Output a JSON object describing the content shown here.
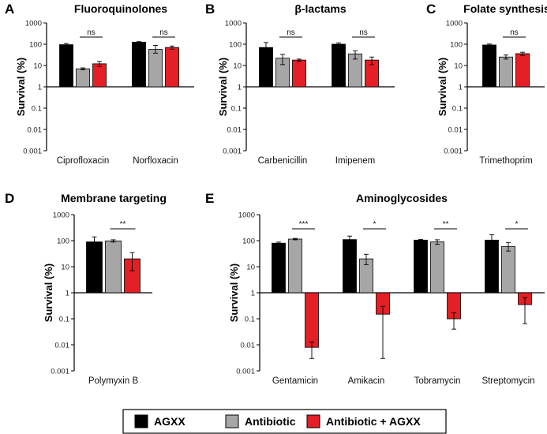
{
  "chart_data": [
    {
      "panel": "A",
      "type": "bar",
      "title": "Fluoroquinolones",
      "ylabel": "Survival (%)",
      "yscale": "log",
      "ylim": [
        0.001,
        1000
      ],
      "yticks": [
        "1000",
        "100",
        "10",
        "1",
        "0.1",
        "0.01",
        "0.001"
      ],
      "categories": [
        "Ciprofloxacin",
        "Norfloxacin"
      ],
      "series": [
        {
          "name": "AGXX",
          "color": "#000000",
          "values": [
            95,
            125
          ],
          "err_low": [
            83,
            118
          ],
          "err_high": [
            108,
            132
          ]
        },
        {
          "name": "Antibiotic",
          "color": "#a6a6a6",
          "values": [
            7,
            58
          ],
          "err_low": [
            6.3,
            38
          ],
          "err_high": [
            7.7,
            88
          ]
        },
        {
          "name": "Antibiotic + AGXX",
          "color": "#e41f25",
          "values": [
            12,
            70
          ],
          "err_low": [
            9,
            58
          ],
          "err_high": [
            15.5,
            82
          ]
        }
      ],
      "significance": [
        {
          "category": "Ciprofloxacin",
          "label": "ns"
        },
        {
          "category": "Norfloxacin",
          "label": "ns"
        }
      ]
    },
    {
      "panel": "B",
      "type": "bar",
      "title": "β-lactams",
      "ylabel": "Survival (%)",
      "yscale": "log",
      "ylim": [
        0.001,
        1000
      ],
      "yticks": [
        "1000",
        "100",
        "10",
        "1",
        "0.1",
        "0.01",
        "0.001"
      ],
      "categories": [
        "Carbenicillin",
        "Imipenem"
      ],
      "series": [
        {
          "name": "AGXX",
          "color": "#000000",
          "values": [
            70,
            100
          ],
          "err_low": [
            42,
            85
          ],
          "err_high": [
            120,
            115
          ]
        },
        {
          "name": "Antibiotic",
          "color": "#a6a6a6",
          "values": [
            22,
            35
          ],
          "err_low": [
            11,
            20
          ],
          "err_high": [
            33,
            48
          ]
        },
        {
          "name": "Antibiotic + AGXX",
          "color": "#e41f25",
          "values": [
            18,
            18
          ],
          "err_low": [
            15.5,
            11
          ],
          "err_high": [
            20,
            25
          ]
        }
      ],
      "significance": [
        {
          "category": "Carbenicillin",
          "label": "ns"
        },
        {
          "category": "Imipenem",
          "label": "ns"
        }
      ]
    },
    {
      "panel": "C",
      "type": "bar",
      "title": "Folate synthesis",
      "ylabel": "Survival (%)",
      "yscale": "log",
      "ylim": [
        0.001,
        1000
      ],
      "yticks": [
        "1000",
        "100",
        "10",
        "1",
        "0.1",
        "0.01",
        "0.001"
      ],
      "categories": [
        "Trimethoprim"
      ],
      "series": [
        {
          "name": "AGXX",
          "color": "#000000",
          "values": [
            92
          ],
          "err_low": [
            82
          ],
          "err_high": [
            102
          ]
        },
        {
          "name": "Antibiotic",
          "color": "#a6a6a6",
          "values": [
            25
          ],
          "err_low": [
            20
          ],
          "err_high": [
            31
          ]
        },
        {
          "name": "Antibiotic + AGXX",
          "color": "#e41f25",
          "values": [
            36
          ],
          "err_low": [
            30
          ],
          "err_high": [
            42
          ]
        }
      ],
      "significance": [
        {
          "category": "Trimethoprim",
          "label": "ns"
        }
      ]
    },
    {
      "panel": "D",
      "type": "bar",
      "title": "Membrane targeting",
      "ylabel": "Survival (%)",
      "yscale": "log",
      "ylim": [
        0.001,
        1000
      ],
      "yticks": [
        "1000",
        "100",
        "10",
        "1",
        "0.1",
        "0.01",
        "0.001"
      ],
      "categories": [
        "Polymyxin B"
      ],
      "series": [
        {
          "name": "AGXX",
          "color": "#000000",
          "values": [
            90
          ],
          "err_low": [
            55
          ],
          "err_high": [
            140
          ]
        },
        {
          "name": "Antibiotic",
          "color": "#a6a6a6",
          "values": [
            98
          ],
          "err_low": [
            88
          ],
          "err_high": [
            108
          ]
        },
        {
          "name": "Antibiotic + AGXX",
          "color": "#e41f25",
          "values": [
            20
          ],
          "err_low": [
            7
          ],
          "err_high": [
            35
          ]
        }
      ],
      "significance": [
        {
          "category": "Polymyxin B",
          "label": "**"
        }
      ]
    },
    {
      "panel": "E",
      "type": "bar",
      "title": "Aminoglycosides",
      "ylabel": "Survival (%)",
      "yscale": "log",
      "ylim": [
        0.001,
        1000
      ],
      "yticks": [
        "1000",
        "100",
        "10",
        "1",
        "0.1",
        "0.01",
        "0.001"
      ],
      "categories": [
        "Gentamicin",
        "Amikacin",
        "Tobramycin",
        "Streptomycin"
      ],
      "series": [
        {
          "name": "AGXX",
          "color": "#000000",
          "values": [
            80,
            110,
            105,
            105
          ],
          "err_low": [
            72,
            80,
            98,
            62
          ],
          "err_high": [
            88,
            150,
            112,
            170
          ]
        },
        {
          "name": "Antibiotic",
          "color": "#a6a6a6",
          "values": [
            115,
            20,
            90,
            60
          ],
          "err_low": [
            108,
            12,
            72,
            40
          ],
          "err_high": [
            122,
            30,
            108,
            85
          ]
        },
        {
          "name": "Antibiotic + AGXX",
          "color": "#e41f25",
          "values": [
            0.008,
            0.15,
            0.1,
            0.35
          ],
          "err_low": [
            0.003,
            0.003,
            0.04,
            0.065
          ],
          "err_high": [
            0.013,
            0.3,
            0.17,
            0.65
          ]
        }
      ],
      "significance": [
        {
          "category": "Gentamicin",
          "label": "***"
        },
        {
          "category": "Amikacin",
          "label": "*"
        },
        {
          "category": "Tobramycin",
          "label": "**"
        },
        {
          "category": "Streptomycin",
          "label": "*"
        }
      ]
    }
  ]
}
